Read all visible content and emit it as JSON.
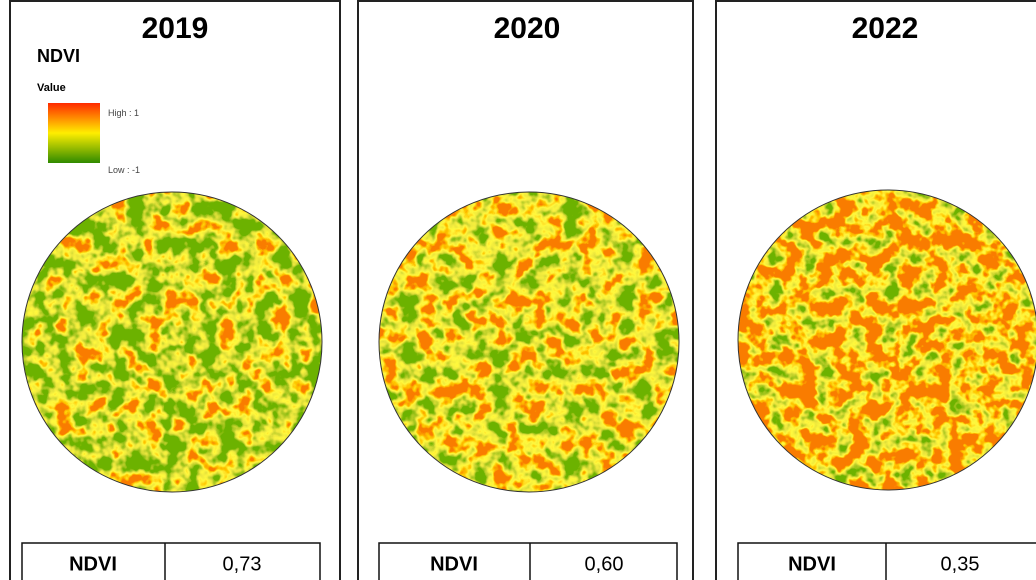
{
  "legend": {
    "title": "NDVI",
    "subtitle": "Value",
    "high": "High : 1",
    "low": "Low : -1"
  },
  "panels": [
    {
      "title": "2019",
      "table": {
        "label": "NDVI",
        "value": "0,73"
      }
    },
    {
      "title": "2020",
      "table": {
        "label": "NDVI",
        "value": "0,60"
      }
    },
    {
      "title": "2022",
      "table": {
        "label": "NDVI",
        "value": "0,35"
      }
    }
  ]
}
